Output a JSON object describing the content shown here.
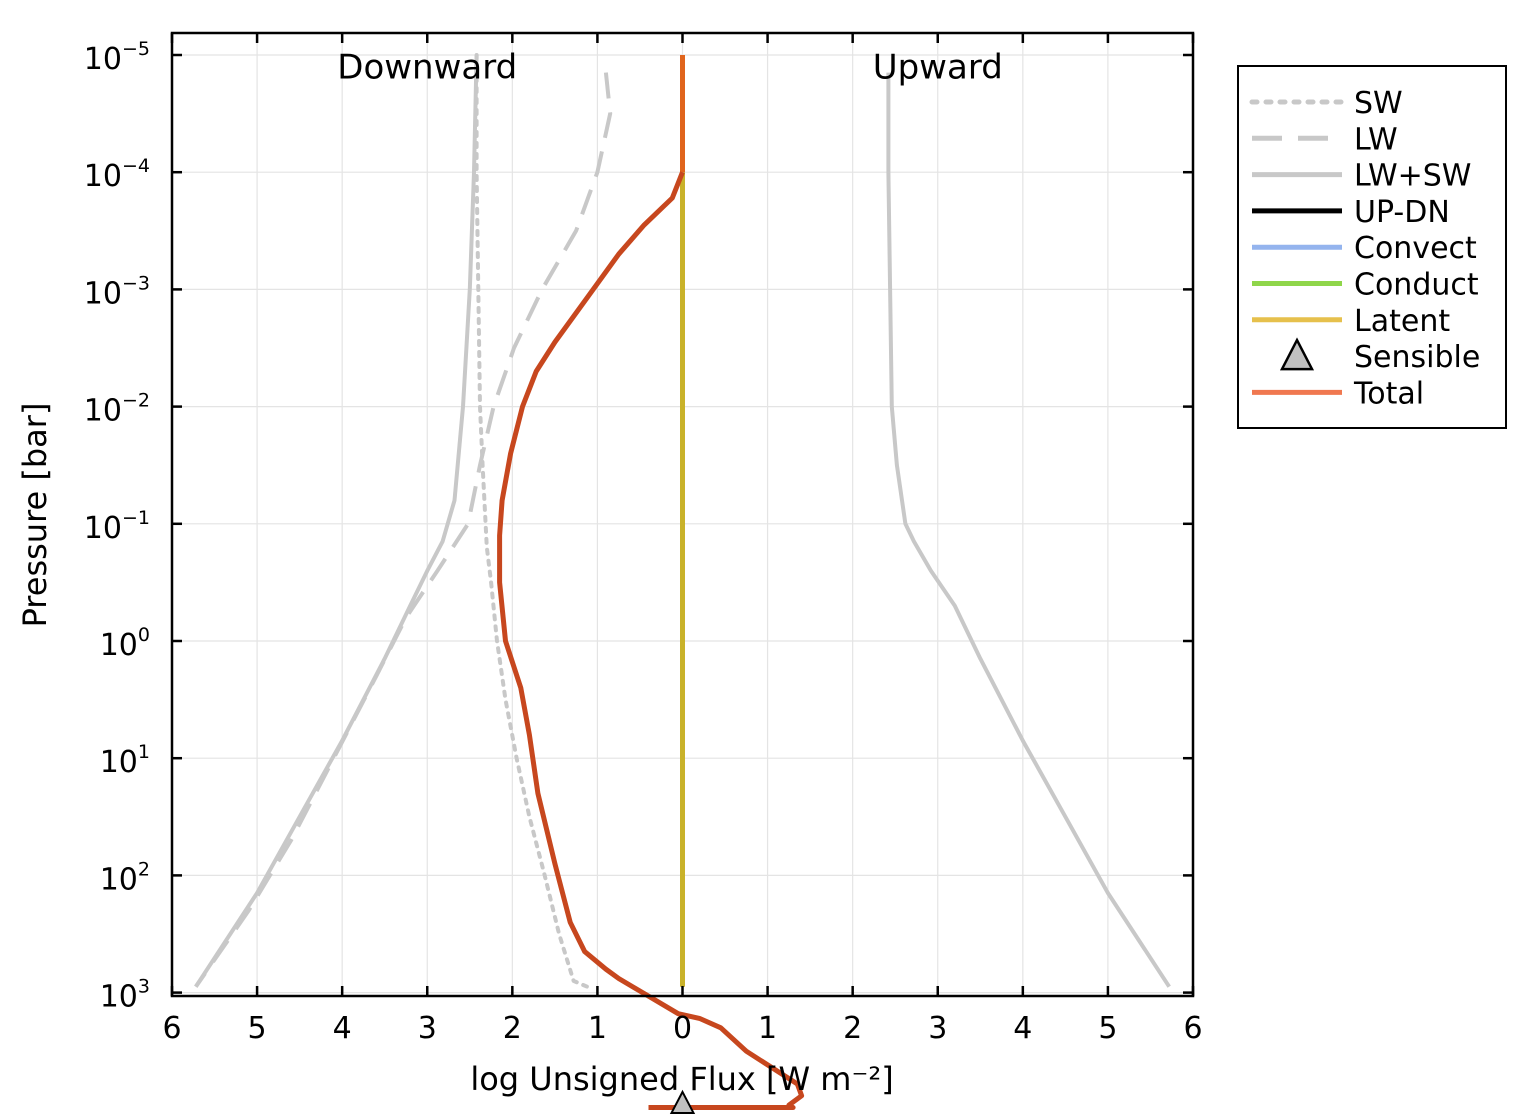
{
  "chart_data": {
    "type": "line",
    "xlabel": "log Unsigned Flux [W m⁻²]",
    "ylabel": "Pressure [bar]",
    "xlim": [
      -6,
      6
    ],
    "ylim_log10": [
      -5,
      3.05
    ],
    "y_scale": "log (inverted)",
    "grid": true,
    "legend_position": "outside-right",
    "x_ticks": [
      {
        "value": -6,
        "label": "6"
      },
      {
        "value": -5,
        "label": "5"
      },
      {
        "value": -4,
        "label": "4"
      },
      {
        "value": -3,
        "label": "3"
      },
      {
        "value": -2,
        "label": "2"
      },
      {
        "value": -1,
        "label": "1"
      },
      {
        "value": 0,
        "label": "0"
      },
      {
        "value": 1,
        "label": "1"
      },
      {
        "value": 2,
        "label": "2"
      },
      {
        "value": 3,
        "label": "3"
      },
      {
        "value": 4,
        "label": "4"
      },
      {
        "value": 5,
        "label": "5"
      },
      {
        "value": 6,
        "label": "6"
      }
    ],
    "y_ticks": [
      {
        "value": -5,
        "base": "10",
        "exp": "−5"
      },
      {
        "value": -4,
        "base": "10",
        "exp": "−4"
      },
      {
        "value": -3,
        "base": "10",
        "exp": "−3"
      },
      {
        "value": -2,
        "base": "10",
        "exp": "−2"
      },
      {
        "value": -1,
        "base": "10",
        "exp": "−1"
      },
      {
        "value": 0,
        "base": "10",
        "exp": "0"
      },
      {
        "value": 1,
        "base": "10",
        "exp": "1"
      },
      {
        "value": 2,
        "base": "10",
        "exp": "2"
      },
      {
        "value": 3,
        "base": "10",
        "exp": "3"
      }
    ],
    "annotations": [
      {
        "text": "Downward",
        "x": -3.0,
        "y": -4.9
      },
      {
        "text": "Upward",
        "x": 3.0,
        "y": -4.9
      }
    ],
    "legend": [
      {
        "label": "SW",
        "color": "#c8c8c8",
        "style": "dotted"
      },
      {
        "label": "LW",
        "color": "#c8c8c8",
        "style": "dashed"
      },
      {
        "label": "LW+SW",
        "color": "#c8c8c8",
        "style": "solid"
      },
      {
        "label": "UP-DN",
        "color": "#000000",
        "style": "solid"
      },
      {
        "label": "Convect",
        "color": "#94b4ee",
        "style": "solid"
      },
      {
        "label": "Conduct",
        "color": "#8fd64a",
        "style": "solid"
      },
      {
        "label": "Latent",
        "color": "#e6c04c",
        "style": "solid"
      },
      {
        "label": "Sensible",
        "color": "#c0c0c0",
        "style": "triangle"
      },
      {
        "label": "Total",
        "color": "#f07850",
        "style": "solid"
      }
    ],
    "series": [
      {
        "style": "dotted",
        "color": "#c8c8c8",
        "points": [
          [
            -2.42,
            -5
          ],
          [
            -2.42,
            -4
          ],
          [
            -2.4,
            -3
          ],
          [
            -2.38,
            -2
          ],
          [
            -2.35,
            -1.5
          ],
          [
            -2.3,
            -0.8
          ],
          [
            -2.25,
            -0.5
          ],
          [
            -2.18,
            0
          ],
          [
            -2.08,
            0.5
          ],
          [
            -1.95,
            1
          ],
          [
            -1.8,
            1.5
          ],
          [
            -1.62,
            2
          ],
          [
            -1.45,
            2.5
          ],
          [
            -1.28,
            2.9
          ],
          [
            -1.12,
            2.95
          ]
        ]
      },
      {
        "style": "dashed",
        "color": "#c8c8c8",
        "points": [
          [
            -0.9,
            -4.85
          ],
          [
            -0.85,
            -4.5
          ],
          [
            -1.0,
            -4.0
          ],
          [
            -1.25,
            -3.5
          ],
          [
            -1.65,
            -3.0
          ],
          [
            -1.98,
            -2.5
          ],
          [
            -2.22,
            -2.0
          ],
          [
            -2.38,
            -1.5
          ],
          [
            -2.52,
            -1.0
          ],
          [
            -2.88,
            -0.6
          ],
          [
            -3.25,
            -0.2
          ],
          [
            -3.6,
            0.3
          ],
          [
            -4.1,
            1.0
          ],
          [
            -4.6,
            1.7
          ],
          [
            -5.1,
            2.3
          ],
          [
            -5.72,
            2.95
          ]
        ]
      },
      {
        "style": "solid",
        "color": "#c8c8c8",
        "points": [
          [
            -2.42,
            -5
          ],
          [
            -2.45,
            -4
          ],
          [
            -2.5,
            -3
          ],
          [
            -2.58,
            -2
          ],
          [
            -2.68,
            -1.2
          ],
          [
            -2.82,
            -0.85
          ],
          [
            -3.0,
            -0.6
          ],
          [
            -3.2,
            -0.3
          ],
          [
            -3.5,
            0.15
          ],
          [
            -4.0,
            0.85
          ],
          [
            -4.5,
            1.5
          ],
          [
            -5.0,
            2.15
          ],
          [
            -5.72,
            2.95
          ]
        ]
      },
      {
        "style": "solid",
        "color": "#c8c8c8",
        "points": [
          [
            2.42,
            -4.85
          ],
          [
            2.42,
            -4
          ],
          [
            2.44,
            -3
          ],
          [
            2.46,
            -2
          ],
          [
            2.52,
            -1.5
          ],
          [
            2.62,
            -1.0
          ],
          [
            2.72,
            -0.85
          ],
          [
            2.92,
            -0.6
          ],
          [
            3.2,
            -0.3
          ],
          [
            3.5,
            0.15
          ],
          [
            4.0,
            0.85
          ],
          [
            4.5,
            1.5
          ],
          [
            5.0,
            2.15
          ],
          [
            5.72,
            2.95
          ]
        ]
      },
      {
        "style": "solid",
        "color": "#c9b22a",
        "points": [
          [
            0,
            -4
          ],
          [
            0,
            2.95
          ]
        ]
      },
      {
        "style": "solid",
        "color": "#e0641c",
        "points": [
          [
            0,
            -5
          ],
          [
            0,
            -4
          ]
        ]
      },
      {
        "style": "solid",
        "color": "#c7471e",
        "points": [
          [
            0,
            -4.0
          ],
          [
            -0.12,
            -3.78
          ],
          [
            -0.45,
            -3.55
          ],
          [
            -0.75,
            -3.3
          ],
          [
            -1.1,
            -2.95
          ],
          [
            -1.5,
            -2.55
          ],
          [
            -1.72,
            -2.3
          ],
          [
            -1.88,
            -2.0
          ],
          [
            -2.02,
            -1.6
          ],
          [
            -2.12,
            -1.2
          ],
          [
            -2.15,
            -0.9
          ],
          [
            -2.15,
            -0.5
          ],
          [
            -2.08,
            0.0
          ],
          [
            -1.9,
            0.4
          ],
          [
            -1.8,
            0.8
          ],
          [
            -1.7,
            1.3
          ],
          [
            -1.5,
            1.9
          ],
          [
            -1.32,
            2.4
          ],
          [
            -1.15,
            2.65
          ],
          [
            -0.9,
            2.8
          ],
          [
            -0.75,
            2.88
          ],
          [
            -0.05,
            3.18
          ],
          [
            0.2,
            3.22
          ],
          [
            0.45,
            3.3
          ],
          [
            0.75,
            3.5
          ],
          [
            1.35,
            3.78
          ],
          [
            1.4,
            3.88
          ],
          [
            1.25,
            3.96
          ],
          [
            1.3,
            3.98
          ],
          [
            -0.4,
            3.98
          ]
        ]
      }
    ],
    "markers": [
      {
        "type": "triangle",
        "label": "Sensible",
        "x": 0,
        "y": 3.95,
        "color": "#c0c0c0"
      }
    ]
  }
}
